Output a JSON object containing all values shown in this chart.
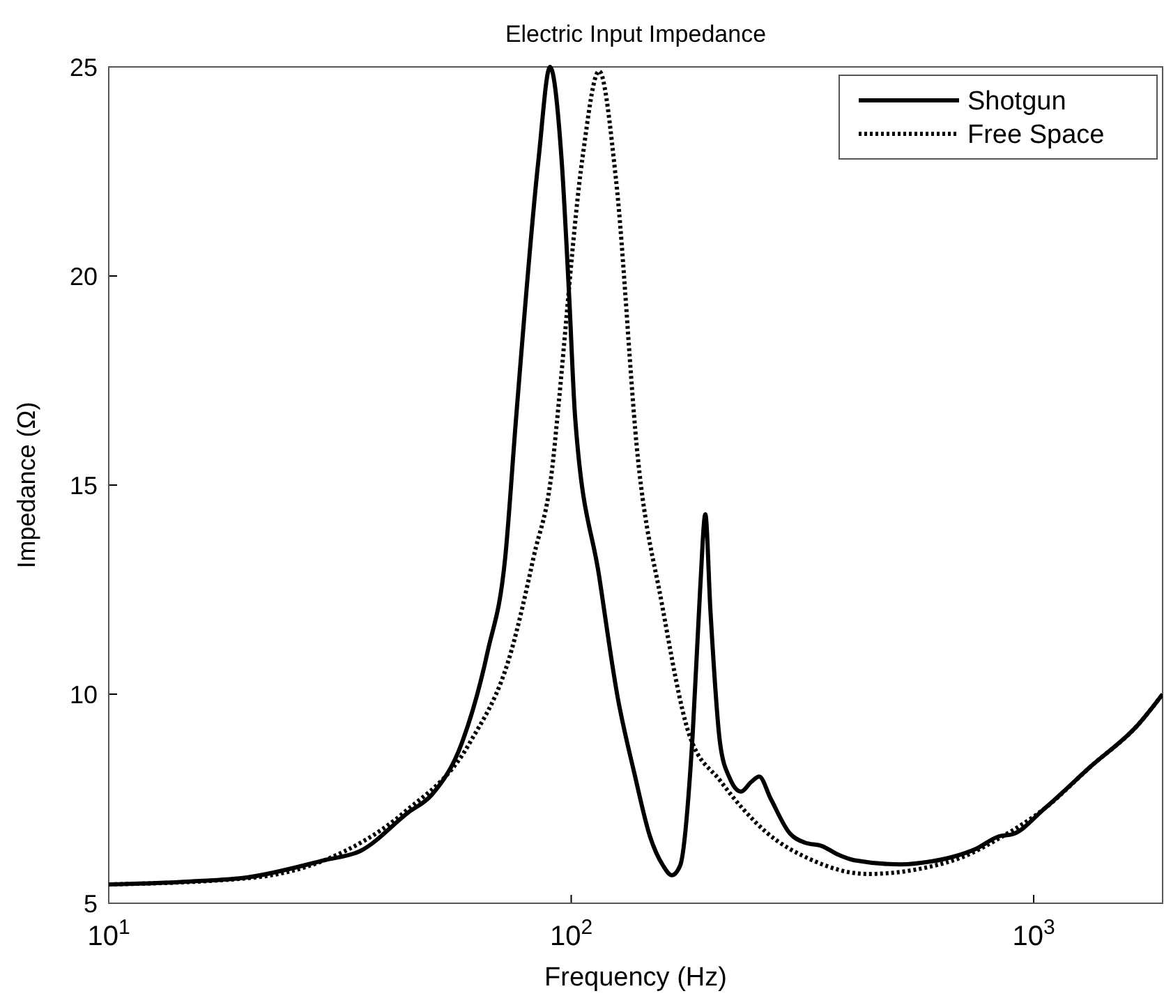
{
  "chart_data": {
    "type": "line",
    "title": "Electric Input Impedance",
    "xlabel": "Frequency (Hz)",
    "ylabel": "Impedance (Ω)",
    "log": "x",
    "xlim": [
      10,
      1900
    ],
    "ylim": [
      5,
      25
    ],
    "xticks": [
      {
        "value": 10,
        "label": "10$^{1}$"
      },
      {
        "value": 100,
        "label": "10$^{2}$"
      },
      {
        "value": 1000,
        "label": "10$^{3}$"
      }
    ],
    "yticks": [
      5,
      10,
      15,
      20,
      25
    ],
    "grid": false,
    "legend": "top right",
    "series": [
      {
        "name": "Shotgun",
        "color": "#000000",
        "line_style": "solid",
        "x": [
          10,
          15,
          20,
          29.3,
          35,
          44.4,
          50,
          58,
          66,
          72,
          76,
          85,
          90,
          95.3,
          99,
          102,
          115,
          126,
          137,
          148,
          158,
          165,
          172,
          183,
          190,
          195,
          200,
          210,
          220,
          233,
          245,
          255,
          270,
          297,
          320,
          348,
          380,
          409,
          517,
          600,
          664,
          750,
          841,
          900,
          1057,
          1328,
          1682,
          1900
        ],
        "values": [
          5.45,
          5.52,
          5.62,
          6.03,
          6.25,
          7.17,
          7.6,
          8.83,
          11.03,
          13.27,
          16.6,
          22.8,
          25,
          22.8,
          19.5,
          16.6,
          12.8,
          9.93,
          8.1,
          6.6,
          5.9,
          5.67,
          5.9,
          9.0,
          12.5,
          14.3,
          12.0,
          8.8,
          8.0,
          7.67,
          7.9,
          8.03,
          7.5,
          6.67,
          6.45,
          6.37,
          6.15,
          6.03,
          5.93,
          6.0,
          6.1,
          6.3,
          6.6,
          6.65,
          7.27,
          8.27,
          9.27,
          10.0
        ]
      },
      {
        "name": "Free Space",
        "color": "#000000",
        "line_style": "dotted",
        "x": [
          10,
          20,
          29.3,
          43.5,
          60.3,
          74.2,
          82.9,
          91.4,
          93.3,
          105.7,
          114.9,
          125,
          139.5,
          157,
          180,
          210,
          264,
          332,
          438,
          594,
          700,
          841,
          1057,
          1328,
          1682,
          1900
        ],
        "values": [
          5.45,
          5.6,
          6.03,
          7.17,
          8.83,
          11.03,
          13.27,
          15.6,
          16.6,
          22.8,
          24.9,
          22.3,
          15.6,
          12.17,
          9.03,
          7.93,
          6.7,
          6.03,
          5.7,
          5.87,
          6.1,
          6.55,
          7.27,
          8.27,
          9.27,
          10.0
        ]
      }
    ]
  }
}
